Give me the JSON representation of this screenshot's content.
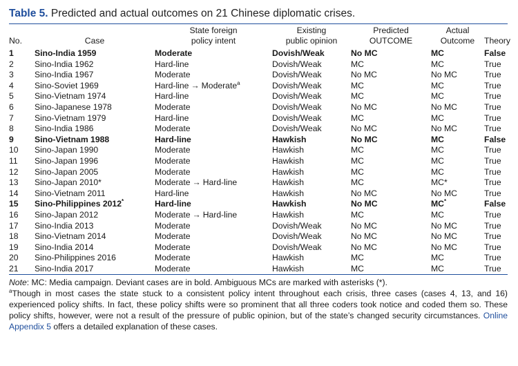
{
  "title": {
    "label": "Table 5.",
    "text": "Predicted and actual outcomes on 21 Chinese diplomatic crises."
  },
  "columns": [
    {
      "line1": "",
      "line2": "No."
    },
    {
      "line1": "",
      "line2": "Case"
    },
    {
      "line1": "State foreign",
      "line2": "policy intent"
    },
    {
      "line1": "Existing",
      "line2": "public opinion"
    },
    {
      "line1": "Predicted",
      "line2": "OUTCOME"
    },
    {
      "line1": "Actual",
      "line2": "Outcome"
    },
    {
      "line1": "",
      "line2": "Theory"
    }
  ],
  "arrow": "→",
  "rows": [
    {
      "no": "1",
      "case": "Sino-India 1959",
      "case_sup": "",
      "intent": "Moderate",
      "intent_sup": "",
      "opinion": "Dovish/Weak",
      "predicted": "No MC",
      "actual": "MC",
      "actual_sup": "",
      "theory": "False",
      "bold": true
    },
    {
      "no": "2",
      "case": "Sino-India 1962",
      "case_sup": "",
      "intent": "Hard-line",
      "intent_sup": "",
      "opinion": "Dovish/Weak",
      "predicted": "MC",
      "actual": "MC",
      "actual_sup": "",
      "theory": "True",
      "bold": false
    },
    {
      "no": "3",
      "case": "Sino-India 1967",
      "case_sup": "",
      "intent": "Moderate",
      "intent_sup": "",
      "opinion": "Dovish/Weak",
      "predicted": "No MC",
      "actual": "No MC",
      "actual_sup": "",
      "theory": "True",
      "bold": false
    },
    {
      "no": "4",
      "case": "Sino-Soviet 1969",
      "case_sup": "",
      "intent": "Hard-line",
      "intent_to": "Moderate",
      "intent_sup": "a",
      "opinion": "Dovish/Weak",
      "predicted": "MC",
      "actual": "MC",
      "actual_sup": "",
      "theory": "True",
      "bold": false
    },
    {
      "no": "5",
      "case": "Sino-Vietnam 1974",
      "case_sup": "",
      "intent": "Hard-line",
      "intent_sup": "",
      "opinion": "Dovish/Weak",
      "predicted": "MC",
      "actual": "MC",
      "actual_sup": "",
      "theory": "True",
      "bold": false
    },
    {
      "no": "6",
      "case": "Sino-Japanese 1978",
      "case_sup": "",
      "intent": "Moderate",
      "intent_sup": "",
      "opinion": "Dovish/Weak",
      "predicted": "No MC",
      "actual": "No MC",
      "actual_sup": "",
      "theory": "True",
      "bold": false
    },
    {
      "no": "7",
      "case": "Sino-Vietnam 1979",
      "case_sup": "",
      "intent": "Hard-line",
      "intent_sup": "",
      "opinion": "Dovish/Weak",
      "predicted": "MC",
      "actual": "MC",
      "actual_sup": "",
      "theory": "True",
      "bold": false
    },
    {
      "no": "8",
      "case": "Sino-India 1986",
      "case_sup": "",
      "intent": "Moderate",
      "intent_sup": "",
      "opinion": "Dovish/Weak",
      "predicted": "No MC",
      "actual": "No MC",
      "actual_sup": "",
      "theory": "True",
      "bold": false
    },
    {
      "no": "9",
      "case": "Sino-Vietnam 1988",
      "case_sup": "",
      "intent": "Hard-line",
      "intent_sup": "",
      "opinion": "Hawkish",
      "predicted": "No MC",
      "actual": "MC",
      "actual_sup": "",
      "theory": "False",
      "bold": true
    },
    {
      "no": "10",
      "case": "Sino-Japan 1990",
      "case_sup": "",
      "intent": "Moderate",
      "intent_sup": "",
      "opinion": "Hawkish",
      "predicted": "MC",
      "actual": "MC",
      "actual_sup": "",
      "theory": "True",
      "bold": false
    },
    {
      "no": "11",
      "case": "Sino-Japan 1996",
      "case_sup": "",
      "intent": "Moderate",
      "intent_sup": "",
      "opinion": "Hawkish",
      "predicted": "MC",
      "actual": "MC",
      "actual_sup": "",
      "theory": "True",
      "bold": false
    },
    {
      "no": "12",
      "case": "Sino-Japan 2005",
      "case_sup": "",
      "intent": "Moderate",
      "intent_sup": "",
      "opinion": "Hawkish",
      "predicted": "MC",
      "actual": "MC",
      "actual_sup": "",
      "theory": "True",
      "bold": false
    },
    {
      "no": "13",
      "case": "Sino-Japan 2010*",
      "case_sup": "",
      "intent": "Moderate",
      "intent_to": "Hard-line",
      "intent_sup": "",
      "opinion": "Hawkish",
      "predicted": "MC",
      "actual": "MC*",
      "actual_sup": "",
      "theory": "True",
      "bold": false
    },
    {
      "no": "14",
      "case": "Sino-Vietnam 2011",
      "case_sup": "",
      "intent": "Hard-line",
      "intent_sup": "",
      "opinion": "Hawkish",
      "predicted": "No MC",
      "actual": "No MC",
      "actual_sup": "",
      "theory": "True",
      "bold": false
    },
    {
      "no": "15",
      "case": "Sino-Philippines 2012",
      "case_sup": "*",
      "intent": "Hard-line",
      "intent_sup": "",
      "opinion": "Hawkish",
      "predicted": "No MC",
      "actual": "MC",
      "actual_sup": "*",
      "theory": "False",
      "bold": true
    },
    {
      "no": "16",
      "case": "Sino-Japan 2012",
      "case_sup": "",
      "intent": "Moderate",
      "intent_to": "Hard-line",
      "intent_sup": "",
      "opinion": "Hawkish",
      "predicted": "MC",
      "actual": "MC",
      "actual_sup": "",
      "theory": "True",
      "bold": false
    },
    {
      "no": "17",
      "case": "Sino-India 2013",
      "case_sup": "",
      "intent": "Moderate",
      "intent_sup": "",
      "opinion": "Dovish/Weak",
      "predicted": "No MC",
      "actual": "No MC",
      "actual_sup": "",
      "theory": "True",
      "bold": false
    },
    {
      "no": "18",
      "case": "Sino-Vietnam 2014",
      "case_sup": "",
      "intent": "Moderate",
      "intent_sup": "",
      "opinion": "Dovish/Weak",
      "predicted": "No MC",
      "actual": "No MC",
      "actual_sup": "",
      "theory": "True",
      "bold": false
    },
    {
      "no": "19",
      "case": "Sino-India 2014",
      "case_sup": "",
      "intent": "Moderate",
      "intent_sup": "",
      "opinion": "Dovish/Weak",
      "predicted": "No MC",
      "actual": "No MC",
      "actual_sup": "",
      "theory": "True",
      "bold": false
    },
    {
      "no": "20",
      "case": "Sino-Philippines 2016",
      "case_sup": "",
      "intent": "Moderate",
      "intent_sup": "",
      "opinion": "Hawkish",
      "predicted": "MC",
      "actual": "MC",
      "actual_sup": "",
      "theory": "True",
      "bold": false
    },
    {
      "no": "21",
      "case": "Sino-India 2017",
      "case_sup": "",
      "intent": "Moderate",
      "intent_sup": "",
      "opinion": "Hawkish",
      "predicted": "MC",
      "actual": "MC",
      "actual_sup": "",
      "theory": "True",
      "bold": false
    }
  ],
  "note": {
    "label": "Note",
    "text": ": MC: Media campaign. Deviant cases are in bold. Ambiguous MCs are marked with asterisks (*).",
    "footnote_mark": "a",
    "footnote_text": "Though in most cases the state stuck to a consistent policy intent throughout each crisis, three cases (cases 4, 13, and 16) experienced policy shifts. In fact, these policy shifts were so prominent that all three coders took notice and coded them so. These policy shifts, however, were not a result of the pressure of public opinion, but of the state’s changed security circumstances. ",
    "link_text": "Online Appendix 5",
    "footnote_end": " offers a detailed explanation of these cases."
  },
  "colors": {
    "accent": "#1f4e9c",
    "text": "#1a1a1a"
  }
}
